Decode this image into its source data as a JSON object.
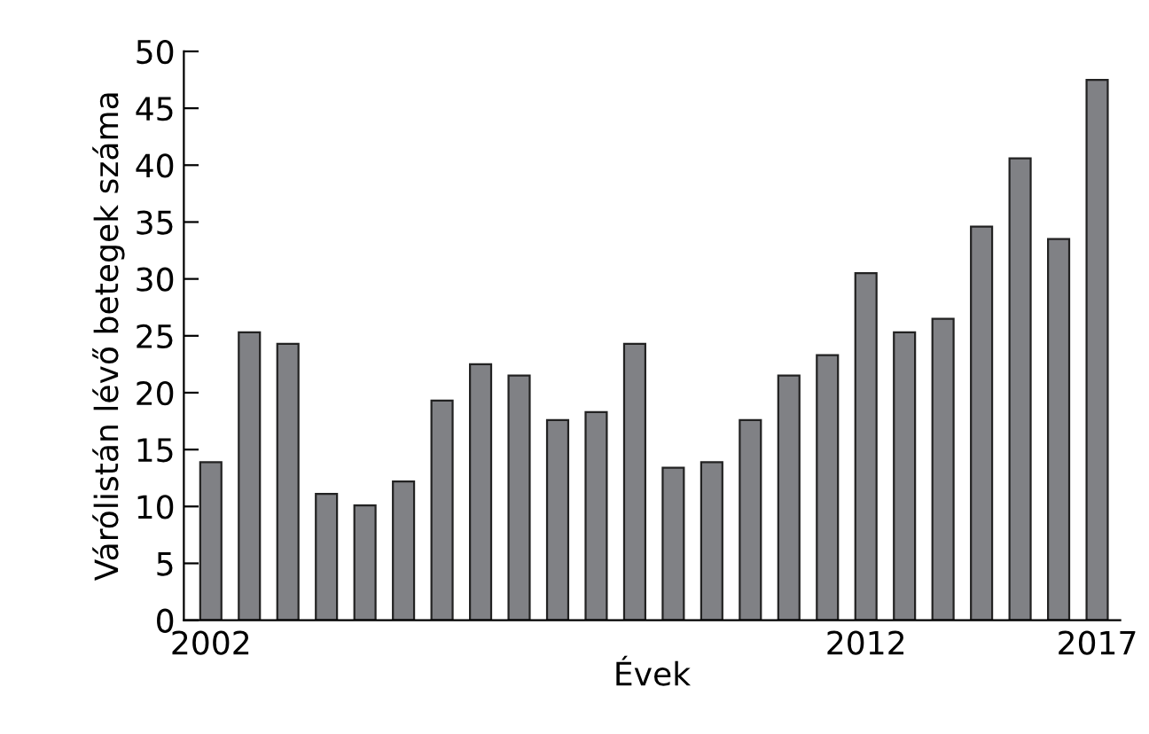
{
  "chart_data": {
    "type": "bar",
    "xlabel": "Évek",
    "ylabel": "Várólistán lévő betegek száma",
    "categories": [
      "2002",
      null,
      null,
      null,
      null,
      null,
      null,
      null,
      null,
      null,
      null,
      null,
      null,
      null,
      null,
      null,
      null,
      "2012",
      null,
      null,
      null,
      null,
      null,
      "2017"
    ],
    "values": [
      13.9,
      25.3,
      24.3,
      11.1,
      10.1,
      12.2,
      19.3,
      22.5,
      21.5,
      17.6,
      18.3,
      24.3,
      13.4,
      13.9,
      17.6,
      21.5,
      23.3,
      30.5,
      25.3,
      26.5,
      34.6,
      40.6,
      33.5,
      47.5
    ],
    "color": "#808185",
    "ylim": [
      0,
      50
    ],
    "yticks": [
      0,
      5,
      10,
      15,
      20,
      25,
      30,
      35,
      40,
      45,
      50
    ],
    "grid": false,
    "legend": false
  }
}
